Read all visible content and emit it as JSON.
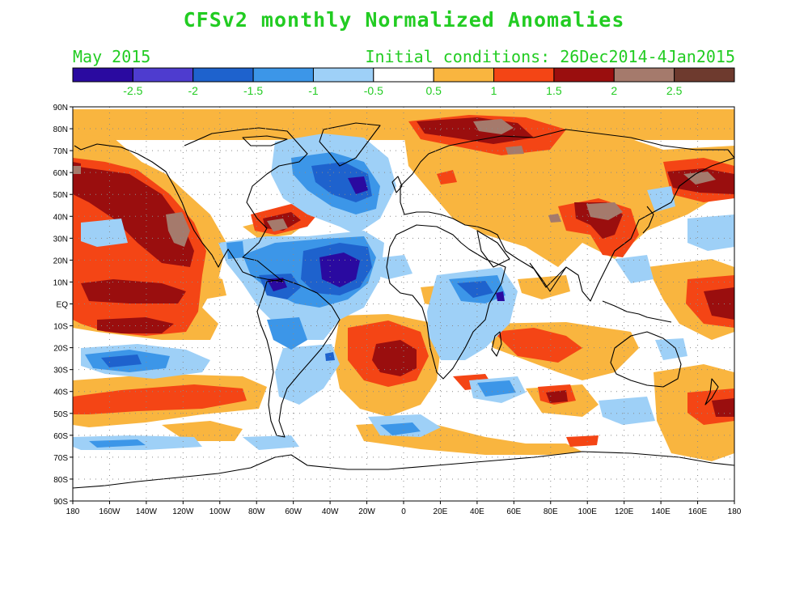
{
  "header": {
    "title": "CFSv2 monthly Normalized Anomalies",
    "month": "May 2015",
    "initial_conditions": "Initial conditions: 26Dec2014-4Jan2015"
  },
  "colorbar": {
    "colors": [
      "#2a0aa0",
      "#4e3ccf",
      "#1e62cd",
      "#3c96e8",
      "#9ed0f7",
      "#ffffff",
      "#f9b53f",
      "#f44515",
      "#9a0e0e",
      "#a57a6c",
      "#6e3a2e"
    ],
    "labels": [
      "-2.5",
      "-2",
      "-1.5",
      "-1",
      "-0.5",
      "0.5",
      "1",
      "1.5",
      "2",
      "2.5"
    ],
    "label_color": "#22cc22"
  },
  "axes": {
    "lat_labels": [
      "90N",
      "80N",
      "70N",
      "60N",
      "50N",
      "40N",
      "30N",
      "20N",
      "10N",
      "EQ",
      "10S",
      "20S",
      "30S",
      "40S",
      "50S",
      "60S",
      "70S",
      "80S",
      "90S"
    ],
    "lon_labels": [
      "180",
      "160W",
      "140W",
      "120W",
      "100W",
      "80W",
      "60W",
      "40W",
      "20W",
      "0",
      "20E",
      "40E",
      "60E",
      "80E",
      "100E",
      "120E",
      "140E",
      "160E",
      "180"
    ]
  },
  "anomaly_colors": {
    "warm_1": "#f9b53f",
    "warm_2": "#f44515",
    "warm_3": "#9a0e0e",
    "warm_4": "#a57a6c",
    "cold_1": "#9ed0f7",
    "cold_2": "#3c96e8",
    "cold_3": "#1e62cd",
    "cold_4": "#2a0aa0"
  }
}
